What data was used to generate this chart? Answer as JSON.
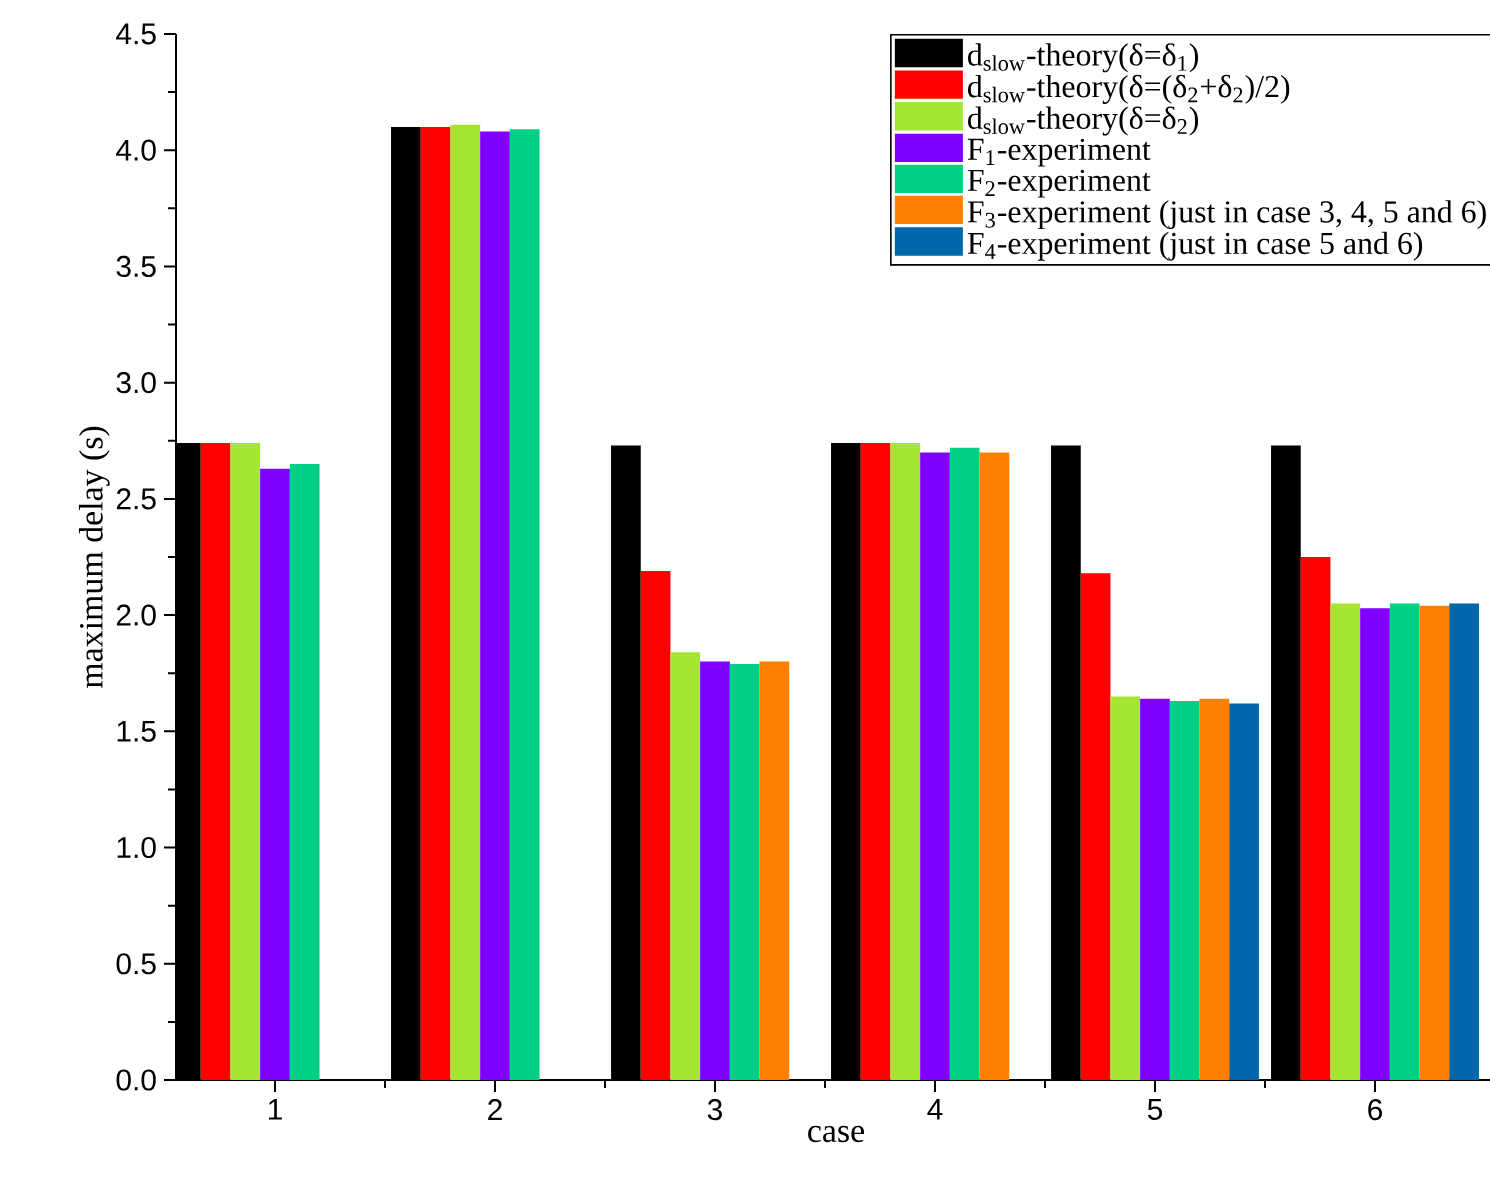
{
  "chart_data": {
    "type": "bar",
    "xlabel": "case",
    "ylabel": "maximum delay (s)",
    "categories": [
      "1",
      "2",
      "3",
      "4",
      "5",
      "6"
    ],
    "series": [
      {
        "name": "d$_{slow}$-theory(δ=δ$_{1}$)",
        "color": "#000000",
        "values": [
          2.74,
          4.1,
          2.73,
          2.74,
          2.73,
          2.73
        ]
      },
      {
        "name": "d$_{slow}$-theory(δ=(δ$_{2}$+δ$_{2}$)/2)",
        "color": "#ff0000",
        "values": [
          2.74,
          4.1,
          2.19,
          2.74,
          2.18,
          2.25
        ]
      },
      {
        "name": "d$_{slow}$-theory(δ=δ$_{2}$)",
        "color": "#a6e534",
        "values": [
          2.74,
          4.11,
          1.84,
          2.74,
          1.65,
          2.05
        ]
      },
      {
        "name": "F$_{1}$-experiment",
        "color": "#8000ff",
        "values": [
          2.63,
          4.08,
          1.8,
          2.7,
          1.64,
          2.03
        ]
      },
      {
        "name": "F$_{2}$-experiment",
        "color": "#00d084",
        "values": [
          2.65,
          4.09,
          1.79,
          2.72,
          1.63,
          2.05
        ]
      },
      {
        "name": "F$_{3}$-experiment (just in case 3, 4, 5 and 6)",
        "color": "#ff8000",
        "values": [
          null,
          null,
          1.8,
          2.7,
          1.64,
          2.04
        ]
      },
      {
        "name": "F$_{4}$-experiment (just in case 5 and 6)",
        "color": "#0066aa",
        "values": [
          null,
          null,
          null,
          null,
          1.62,
          2.05
        ]
      }
    ],
    "ylim": [
      0,
      4.5
    ],
    "yticks": [
      {
        "value": 0,
        "label": "0.0"
      },
      {
        "value": 0.5,
        "label": "0.5"
      },
      {
        "value": 1,
        "label": "1.0"
      },
      {
        "value": 1.5,
        "label": "1.5"
      },
      {
        "value": 2,
        "label": "2.0"
      },
      {
        "value": 2.5,
        "label": "2.5"
      },
      {
        "value": 3,
        "label": "3.0"
      },
      {
        "value": 3.5,
        "label": "3.5"
      },
      {
        "value": 4,
        "label": "4.0"
      },
      {
        "value": 4.5,
        "label": "4.5"
      }
    ],
    "legend": "top right"
  }
}
